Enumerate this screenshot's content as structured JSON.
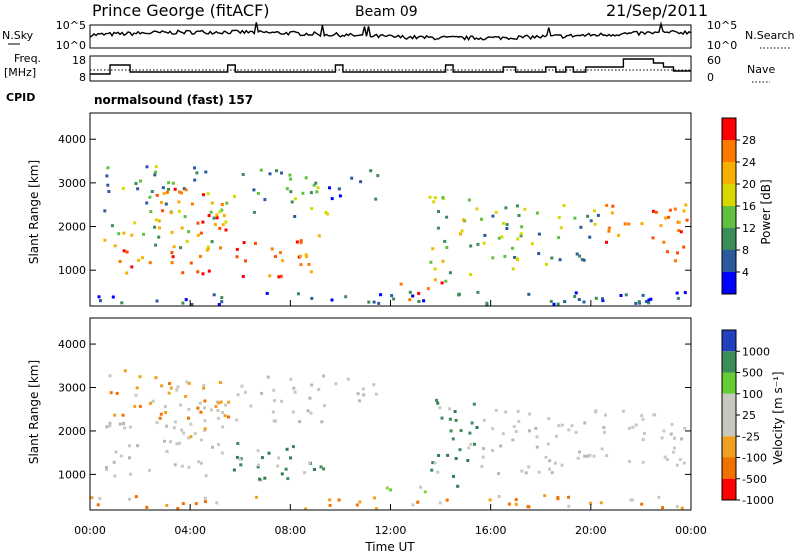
{
  "header": {
    "station": "Prince George (fitACF)",
    "beam": "Beam 09",
    "date": "21/Sep/2011"
  },
  "strip_labels": {
    "nsky": "N.Sky",
    "nsearch": "N.Search",
    "freq_top": "Freq.",
    "freq_unit": "[MHz]",
    "nave": "Nave",
    "cpid": "CPID",
    "cpid_value": "normalsound (fast) 157"
  },
  "noise_panel": {
    "left_ticks": [
      "10^5",
      "10^0"
    ],
    "right_ticks": [
      "10^5",
      "10^0"
    ]
  },
  "freq_panel": {
    "left_ticks": [
      "18",
      "8"
    ],
    "right_ticks": [
      "60",
      "0"
    ]
  },
  "chart_data": [
    {
      "type": "heatmap",
      "name": "power",
      "ylabel": "Slant Range [km]",
      "ylim": [
        180,
        4600
      ],
      "yticks": [
        1000,
        2000,
        3000,
        4000
      ],
      "xlim": [
        0,
        24
      ],
      "colorbar_label": "Power [dB]",
      "colorbar_ticks": [
        "28",
        "24",
        "20",
        "16",
        "12",
        "8",
        "4"
      ],
      "colorbar_colors": [
        "#ff0000",
        "#ff7800",
        "#f7b000",
        "#d8d800",
        "#60c040",
        "#3c8c5a",
        "#2c5aa0",
        "#0000ff"
      ]
    },
    {
      "type": "heatmap",
      "name": "velocity",
      "ylabel": "Slant Range [km]",
      "ylim": [
        180,
        4600
      ],
      "yticks": [
        1000,
        2000,
        3000,
        4000
      ],
      "xlim": [
        0,
        24
      ],
      "colorbar_label": "Velocity [m s⁻¹]",
      "colorbar_ticks": [
        "1000",
        "500",
        "100",
        "25",
        "-25",
        "-100",
        "-500",
        "-1000"
      ],
      "colorbar_colors": [
        "#2040c0",
        "#3c8c5a",
        "#66cc33",
        "#c8c8c0",
        "#c8c8c0",
        "#f0a020",
        "#f07000",
        "#ff0000"
      ]
    }
  ],
  "time_axis": {
    "ticks": [
      "00:00",
      "04:00",
      "08:00",
      "12:00",
      "16:00",
      "20:00",
      "00:00"
    ],
    "label": "Time UT"
  }
}
